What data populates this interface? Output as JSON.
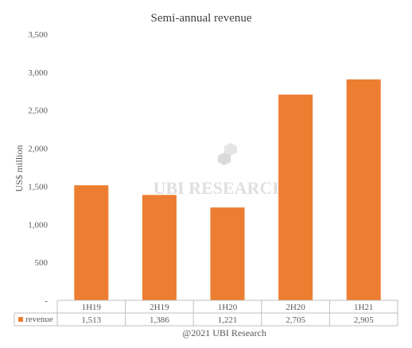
{
  "chart_data": {
    "type": "bar",
    "title": "Semi-annual revenue",
    "ylabel": "US$ million",
    "xlabel": "",
    "categories": [
      "1H19",
      "2H19",
      "1H20",
      "2H20",
      "1H21"
    ],
    "series": [
      {
        "name": "revenue",
        "values": [
          1513,
          1386,
          1221,
          2705,
          2905
        ],
        "value_labels": [
          "1,513",
          "1,386",
          "1,221",
          "2,705",
          "2,905"
        ],
        "color": "#ED7D31"
      }
    ],
    "ylim": [
      0,
      3500
    ],
    "yticks": [
      "-",
      "500",
      "1,000",
      "1,500",
      "2,000",
      "2,500",
      "3,000",
      "3,500"
    ],
    "grid": false,
    "data_table": true,
    "legend_placement": "data-table-left",
    "watermark": "UBI RESEARCH"
  },
  "footer": {
    "copyright": "@2021 UBI Research"
  },
  "colors": {
    "bar": "#ED7D31",
    "axis": "#BFBFBF",
    "text": "#595959",
    "watermark": "#D9D9D9"
  }
}
